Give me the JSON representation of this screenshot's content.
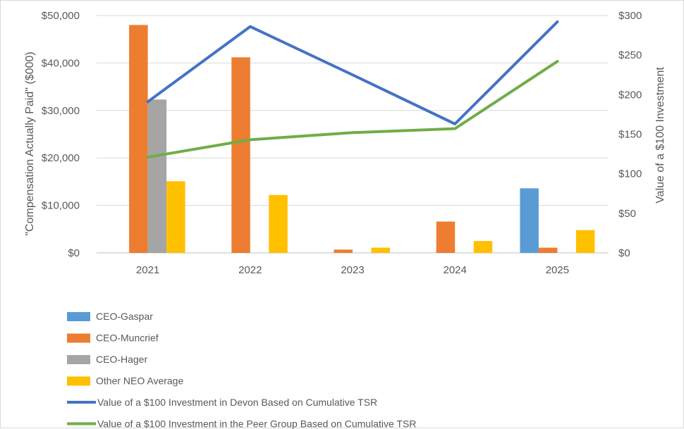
{
  "chart_data": {
    "type": "bar",
    "categories": [
      "2021",
      "2022",
      "2023",
      "2024",
      "2025"
    ],
    "bar_series": [
      {
        "name": "CEO-Gaspar",
        "color": "#5B9BD5",
        "values": [
          null,
          null,
          null,
          null,
          13600
        ]
      },
      {
        "name": "CEO-Muncrief",
        "color": "#ED7D31",
        "values": [
          48000,
          41200,
          700,
          6600,
          1100
        ]
      },
      {
        "name": "CEO-Hager",
        "color": "#A5A5A5",
        "values": [
          32300,
          null,
          null,
          null,
          null
        ]
      },
      {
        "name": "Other NEO Average",
        "color": "#FFC000",
        "values": [
          15100,
          12200,
          1100,
          2500,
          4800
        ]
      }
    ],
    "line_series": [
      {
        "name": "Value of a $100 Investment in Devon Based on Cumulative TSR",
        "color": "#4472C4",
        "axis": "right",
        "values": [
          191,
          286,
          225,
          163,
          292
        ]
      },
      {
        "name": "Value of a $100 Investment in the Peer Group Based on Cumulative TSR",
        "color": "#70AD47",
        "axis": "right",
        "values": [
          121,
          143,
          152,
          157,
          242
        ]
      }
    ],
    "ylabel": "\"Compensation Actually Paid\" ($000)",
    "y2label": "Value of a $100 Investment",
    "ylim": [
      0,
      50000
    ],
    "y2lim": [
      0,
      300
    ],
    "y_ticks": [
      "$0",
      "$10,000",
      "$20,000",
      "$30,000",
      "$40,000",
      "$50,000"
    ],
    "y2_ticks": [
      "$0",
      "$50",
      "$100",
      "$150",
      "$200",
      "$250",
      "$300"
    ],
    "grid": true,
    "legend_position": "bottom-left"
  }
}
